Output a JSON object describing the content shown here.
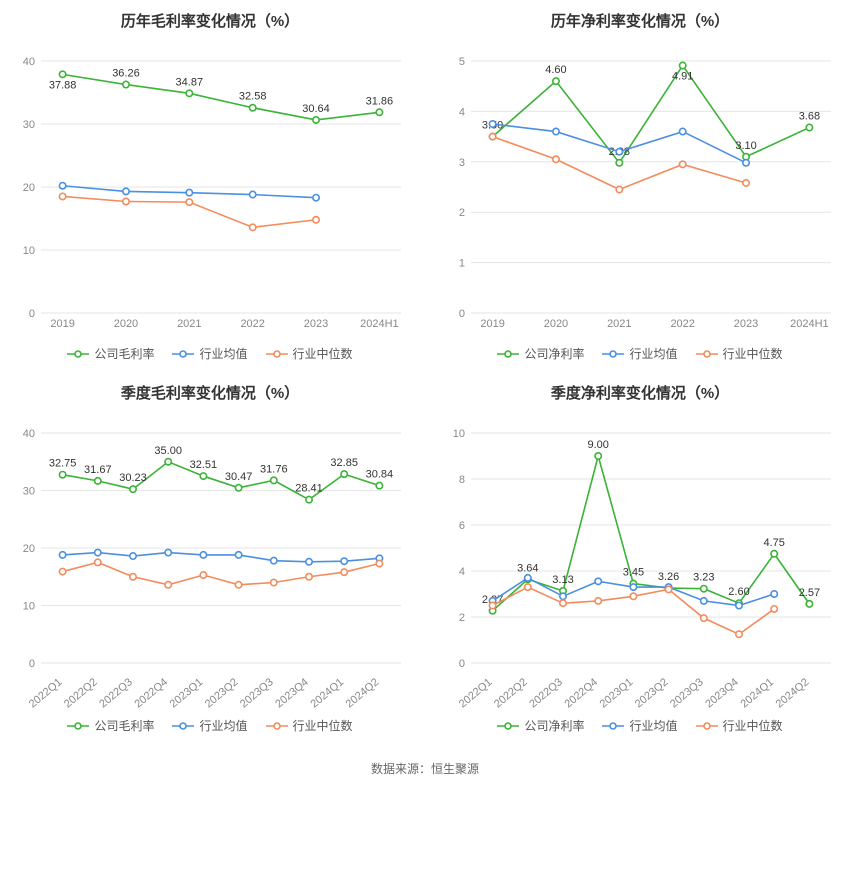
{
  "colors": {
    "company": "#3ab336",
    "industry_avg": "#4a8fe2",
    "industry_median": "#f38b5c",
    "grid": "#e5e5e5",
    "axis_text": "#888888",
    "label_text": "#333333",
    "background": "#ffffff"
  },
  "marker_radius": 3.2,
  "line_width": 1.6,
  "title_fontsize": 15,
  "axis_fontsize": 11,
  "label_fontsize": 11,
  "legend_fontsize": 12,
  "footer_text": "数据来源：恒生聚源",
  "charts": [
    {
      "id": "annual_gross",
      "title": "历年毛利率变化情况（%）",
      "type": "line",
      "x_rotate": 0,
      "categories": [
        "2019",
        "2020",
        "2021",
        "2022",
        "2023",
        "2024H1"
      ],
      "ylim": [
        0,
        40
      ],
      "ytick_step": 10,
      "series": [
        {
          "key": "company",
          "label": "公司毛利率",
          "values": [
            37.88,
            36.26,
            34.87,
            32.58,
            30.64,
            31.86
          ],
          "show_labels": true,
          "point_labels": [
            "37.88",
            "36.26",
            "34.87",
            "32.58",
            "30.64",
            "31.86"
          ]
        },
        {
          "key": "industry_avg",
          "label": "行业均值",
          "values": [
            20.2,
            19.3,
            19.1,
            18.8,
            18.3,
            null
          ],
          "show_labels": false
        },
        {
          "key": "industry_median",
          "label": "行业中位数",
          "values": [
            18.5,
            17.7,
            17.6,
            13.6,
            14.8,
            null
          ],
          "show_labels": false
        }
      ]
    },
    {
      "id": "annual_net",
      "title": "历年净利率变化情况（%）",
      "type": "line",
      "x_rotate": 0,
      "categories": [
        "2019",
        "2020",
        "2021",
        "2022",
        "2023",
        "2024H1"
      ],
      "ylim": [
        0,
        5
      ],
      "ytick_step": 1,
      "series": [
        {
          "key": "company",
          "label": "公司净利率",
          "values": [
            3.5,
            4.6,
            2.98,
            4.91,
            3.1,
            3.68
          ],
          "show_labels": true,
          "point_labels": [
            "3.50",
            "4.60",
            "2.98",
            "4.91",
            "3.10",
            "3.68"
          ]
        },
        {
          "key": "industry_avg",
          "label": "行业均值",
          "values": [
            3.75,
            3.6,
            3.2,
            3.6,
            2.98,
            null
          ],
          "show_labels": false
        },
        {
          "key": "industry_median",
          "label": "行业中位数",
          "values": [
            3.5,
            3.05,
            2.45,
            2.95,
            2.58,
            null
          ],
          "show_labels": false
        }
      ]
    },
    {
      "id": "quarterly_gross",
      "title": "季度毛利率变化情况（%）",
      "type": "line",
      "x_rotate": -40,
      "categories": [
        "2022Q1",
        "2022Q2",
        "2022Q3",
        "2022Q4",
        "2023Q1",
        "2023Q2",
        "2023Q3",
        "2023Q4",
        "2024Q1",
        "2024Q2"
      ],
      "ylim": [
        0,
        40
      ],
      "ytick_step": 10,
      "series": [
        {
          "key": "company",
          "label": "公司毛利率",
          "values": [
            32.75,
            31.67,
            30.23,
            35.0,
            32.51,
            30.47,
            31.76,
            28.41,
            32.85,
            30.84
          ],
          "show_labels": true,
          "point_labels": [
            "32.75",
            "31.67",
            "30.23",
            "35.00",
            "32.51",
            "30.47",
            "31.76",
            "28.41",
            "32.85",
            "30.84"
          ]
        },
        {
          "key": "industry_avg",
          "label": "行业均值",
          "values": [
            18.8,
            19.2,
            18.6,
            19.2,
            18.8,
            18.8,
            17.8,
            17.6,
            17.7,
            18.2
          ],
          "show_labels": false
        },
        {
          "key": "industry_median",
          "label": "行业中位数",
          "values": [
            15.9,
            17.5,
            15.0,
            13.6,
            15.3,
            13.6,
            14.0,
            15.0,
            15.8,
            17.3
          ],
          "show_labels": false
        }
      ]
    },
    {
      "id": "quarterly_net",
      "title": "季度净利率变化情况（%）",
      "type": "line",
      "x_rotate": -40,
      "categories": [
        "2022Q1",
        "2022Q2",
        "2022Q3",
        "2022Q4",
        "2023Q1",
        "2023Q2",
        "2023Q3",
        "2023Q4",
        "2024Q1",
        "2024Q2"
      ],
      "ylim": [
        0,
        10
      ],
      "ytick_step": 2,
      "series": [
        {
          "key": "company",
          "label": "公司净利率",
          "values": [
            2.27,
            3.64,
            3.13,
            9.0,
            3.45,
            3.26,
            3.23,
            2.6,
            4.75,
            2.57
          ],
          "show_labels": true,
          "point_labels": [
            "2.27",
            "3.64",
            "3.13",
            "9.00",
            "3.45",
            "3.26",
            "3.23",
            "2.60",
            "4.75",
            "2.57"
          ]
        },
        {
          "key": "industry_avg",
          "label": "行业均值",
          "values": [
            2.7,
            3.7,
            2.9,
            3.55,
            3.3,
            3.3,
            2.7,
            2.5,
            3.0,
            null
          ],
          "show_labels": false
        },
        {
          "key": "industry_median",
          "label": "行业中位数",
          "values": [
            2.5,
            3.3,
            2.6,
            2.7,
            2.9,
            3.2,
            1.95,
            1.25,
            2.35,
            null
          ],
          "show_labels": false
        }
      ]
    }
  ]
}
